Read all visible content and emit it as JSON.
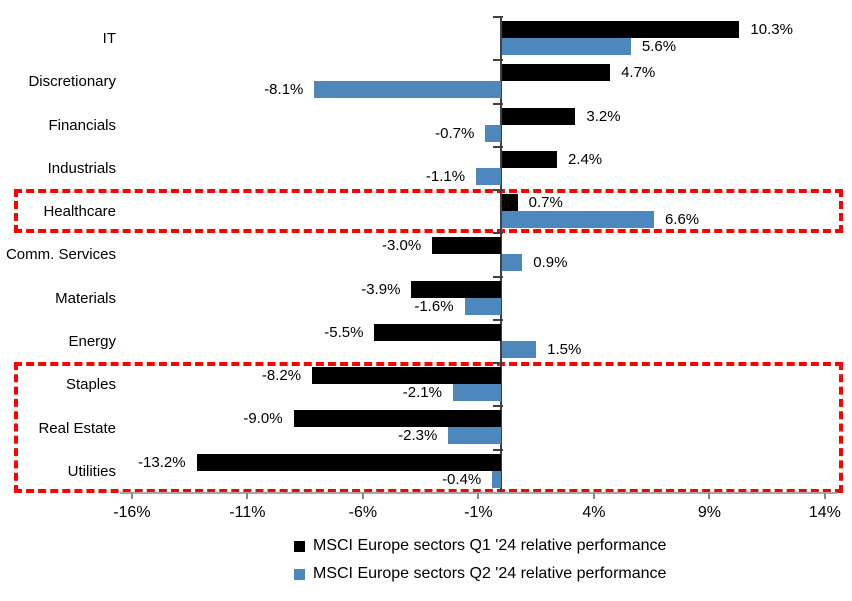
{
  "chart_data": {
    "type": "bar",
    "orientation": "horizontal",
    "title": "",
    "categories": [
      "IT",
      "Discretionary",
      "Financials",
      "Industrials",
      "Healthcare",
      "Comm. Services",
      "Materials",
      "Energy",
      "Staples",
      "Real Estate",
      "Utilities"
    ],
    "series": [
      {
        "name": "MSCI Europe sectors Q1 '24 relative performance",
        "color": "#000000",
        "values": [
          10.3,
          4.7,
          3.2,
          2.4,
          0.7,
          -3.0,
          -3.9,
          -5.5,
          -8.2,
          -9.0,
          -13.2
        ]
      },
      {
        "name": "MSCI Europe sectors Q2 '24 relative performance",
        "color": "#4E86BE",
        "values": [
          5.6,
          -8.1,
          -0.7,
          -1.1,
          6.6,
          0.9,
          -1.6,
          1.5,
          -2.1,
          -2.3,
          -0.4
        ]
      }
    ],
    "value_labels": {
      "position": "outside-end",
      "format": "one-decimal-percent",
      "q1": [
        "10.3%",
        "4.7%",
        "3.2%",
        "2.4%",
        "0.7%",
        "-3.0%",
        "-3.9%",
        "-5.5%",
        "-8.2%",
        "-9.0%",
        "-13.2%"
      ],
      "q2": [
        "5.6%",
        "-8.1%",
        "-0.7%",
        "-1.1%",
        "6.6%",
        "0.9%",
        "-1.6%",
        "1.5%",
        "-2.1%",
        "-2.3%",
        "-0.4%"
      ]
    },
    "x_axis": {
      "tick_labels": [
        "-16%",
        "-11%",
        "-6%",
        "-1%",
        "4%",
        "9%",
        "14%"
      ],
      "tick_values": [
        -16,
        -11,
        -6,
        -1,
        4,
        9,
        14
      ],
      "min": -16.5,
      "max": 14.5,
      "unit": "%"
    },
    "grid": false,
    "legend_position": "bottom-center",
    "highlights": [
      {
        "name": "healthcare-highlight",
        "rows": [
          "Healthcare"
        ],
        "row_start": 4,
        "row_end": 4,
        "color": "#ff0000",
        "style": "dashed-box"
      },
      {
        "name": "defensives-highlight",
        "rows": [
          "Staples",
          "Real Estate",
          "Utilities"
        ],
        "row_start": 8,
        "row_end": 10,
        "color": "#ff0000",
        "style": "dashed-box"
      }
    ]
  }
}
